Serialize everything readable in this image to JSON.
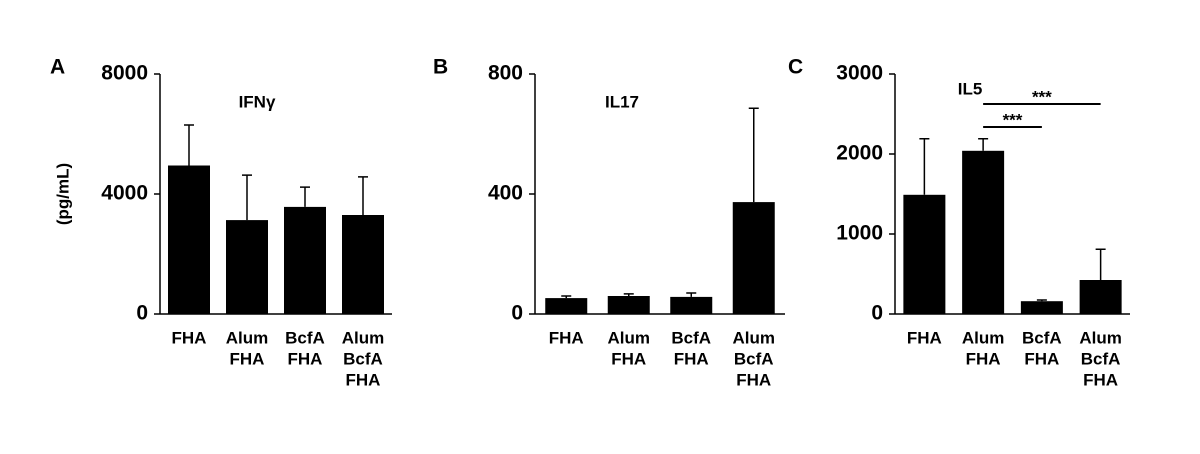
{
  "chart_data": [
    {
      "type": "bar",
      "panel_label": "A",
      "title": "IFNγ",
      "y_label": "(pg/mL)",
      "categories": [
        [
          "FHA"
        ],
        [
          "Alum",
          "FHA"
        ],
        [
          "BcfA",
          "FHA"
        ],
        [
          "Alum",
          "BcfA",
          "FHA"
        ]
      ],
      "values": [
        4950,
        3130,
        3570,
        3300
      ],
      "errors": [
        1350,
        1500,
        660,
        1270
      ],
      "color": "#000000",
      "ylim": [
        0,
        8000
      ],
      "yticks": [
        0,
        4000,
        8000
      ]
    },
    {
      "type": "bar",
      "panel_label": "B",
      "title": "IL17",
      "categories": [
        [
          "FHA"
        ],
        [
          "Alum",
          "FHA"
        ],
        [
          "BcfA",
          "FHA"
        ],
        [
          "Alum",
          "BcfA",
          "FHA"
        ]
      ],
      "values": [
        53,
        60,
        57,
        373
      ],
      "errors": [
        7,
        7,
        13,
        313
      ],
      "color": "#000000",
      "ylim": [
        0,
        800
      ],
      "yticks": [
        0,
        400,
        800
      ]
    },
    {
      "type": "bar",
      "panel_label": "C",
      "title": "IL5",
      "categories": [
        [
          "FHA"
        ],
        [
          "Alum",
          "FHA"
        ],
        [
          "BcfA",
          "FHA"
        ],
        [
          "Alum",
          "BcfA",
          "FHA"
        ]
      ],
      "values": [
        1490,
        2040,
        160,
        425
      ],
      "errors": [
        700,
        150,
        15,
        385
      ],
      "color": "#000000",
      "ylim": [
        0,
        3000
      ],
      "yticks": [
        0,
        1000,
        2000,
        3000
      ],
      "annotations": [
        "***",
        "***"
      ]
    }
  ]
}
